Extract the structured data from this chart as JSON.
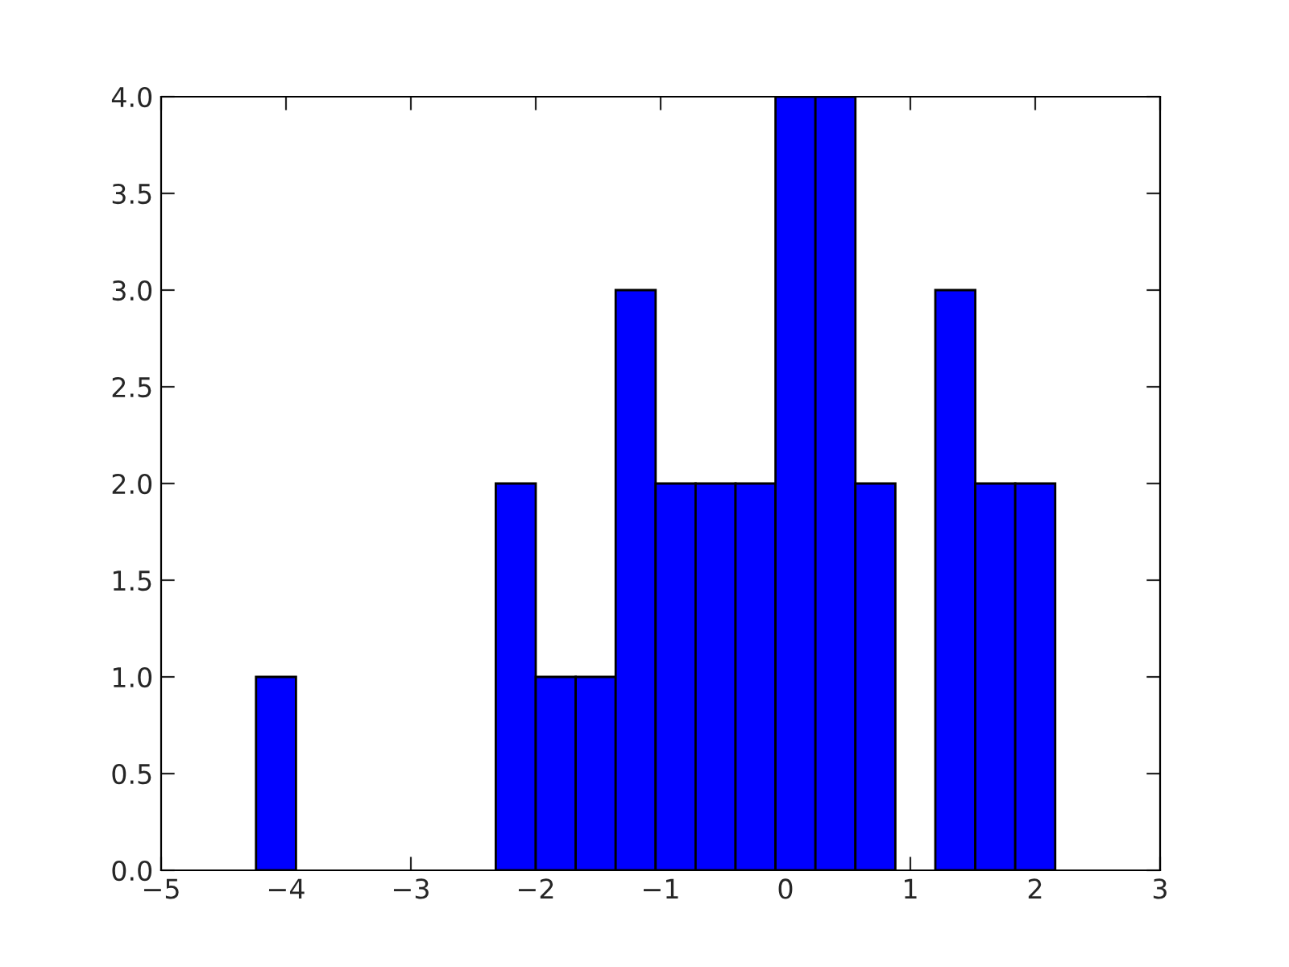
{
  "chart_data": {
    "type": "histogram",
    "bins": [
      -4.24,
      -3.92,
      -3.6,
      -3.28,
      -2.96,
      -2.64,
      -2.32,
      -2.0,
      -1.68,
      -1.36,
      -1.04,
      -0.72,
      -0.4,
      -0.08,
      0.24,
      0.56,
      0.88,
      1.2,
      1.52,
      1.84,
      2.16
    ],
    "values": [
      1,
      0,
      0,
      0,
      0,
      0,
      2,
      1,
      1,
      3,
      2,
      2,
      2,
      4,
      4,
      2,
      0,
      3,
      2,
      2
    ],
    "color": "#0000ff",
    "xlim": [
      -5,
      3
    ],
    "xticks": [
      -5,
      -4,
      -3,
      -2,
      -1,
      0,
      1,
      2,
      3
    ],
    "ylim": [
      0,
      4.0
    ],
    "yticks": [
      {
        "value": 0,
        "label": "0.0"
      },
      {
        "value": 0.5,
        "label": "0.5"
      },
      {
        "value": 1,
        "label": "1.0"
      },
      {
        "value": 1.5,
        "label": "1.5"
      },
      {
        "value": 2,
        "label": "2.0"
      },
      {
        "value": 2.5,
        "label": "2.5"
      },
      {
        "value": 3,
        "label": "3.0"
      },
      {
        "value": 3.5,
        "label": "3.5"
      },
      {
        "value": 4,
        "label": "4.0"
      }
    ],
    "grid": false,
    "legend": false
  }
}
